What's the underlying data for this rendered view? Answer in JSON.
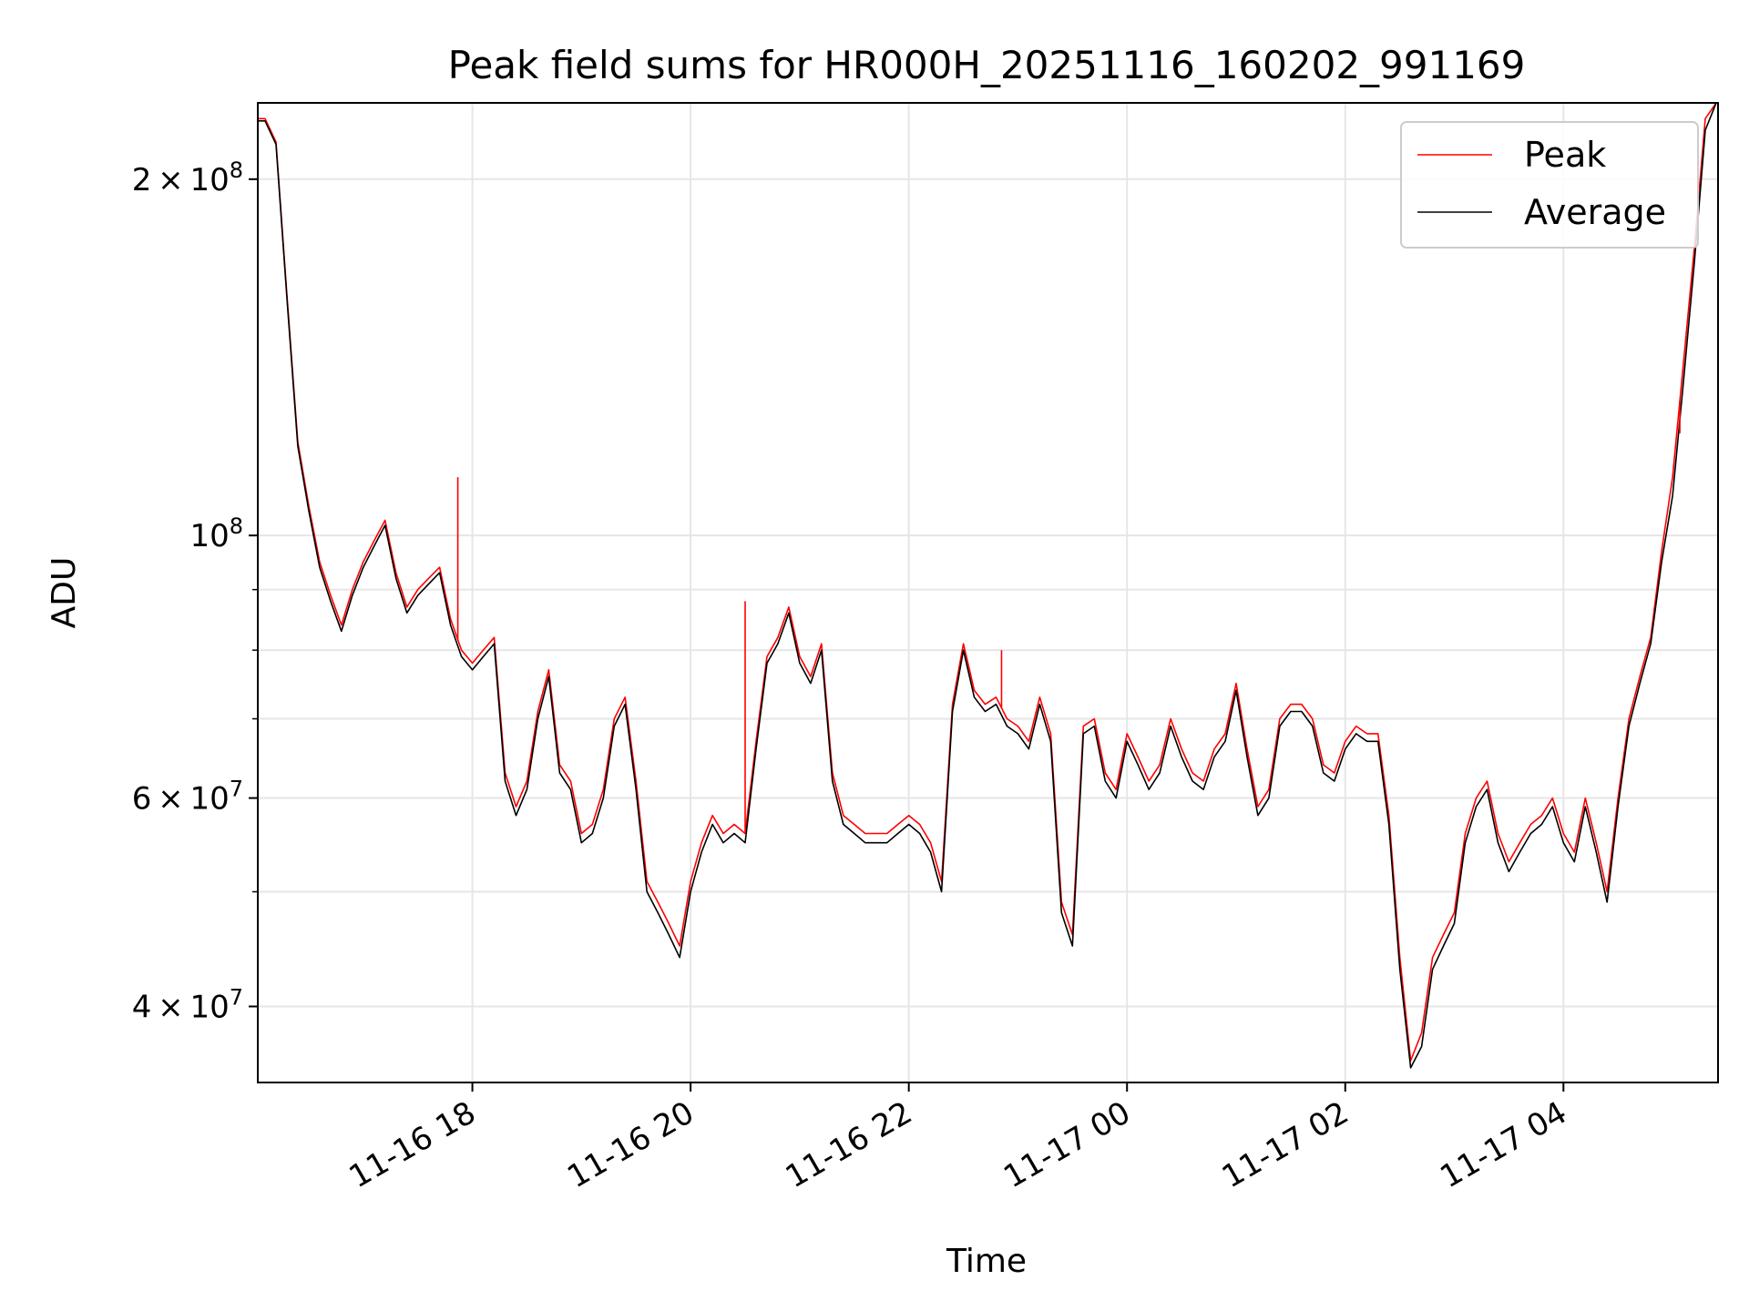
{
  "chart_data": {
    "type": "line",
    "title": "Peak field sums for HR000H_20251116_160202_991169",
    "xlabel": "Time",
    "ylabel": "ADU",
    "yscale": "log",
    "grid": true,
    "legend_position": "top-right",
    "xlim": [
      "2025-11-16 16:02",
      "2025-11-17 05:25"
    ],
    "ylim": [
      34500000,
      232000000
    ],
    "x_ticks": [
      {
        "t": "2025-11-16 18:00",
        "label": "11-16 18"
      },
      {
        "t": "2025-11-16 20:00",
        "label": "11-16 20"
      },
      {
        "t": "2025-11-16 22:00",
        "label": "11-16 22"
      },
      {
        "t": "2025-11-17 00:00",
        "label": "11-17 00"
      },
      {
        "t": "2025-11-17 02:00",
        "label": "11-17 02"
      },
      {
        "t": "2025-11-17 04:00",
        "label": "11-17 04"
      }
    ],
    "y_ticks": [
      {
        "value": 40000000,
        "base": "4",
        "exp": "7"
      },
      {
        "value": 60000000,
        "base": "6",
        "exp": "7"
      },
      {
        "value": 100000000,
        "base": "",
        "exp": "8"
      },
      {
        "value": 200000000,
        "base": "2",
        "exp": "8"
      }
    ],
    "y_minor_ticks": [
      50000000,
      70000000,
      80000000,
      90000000
    ],
    "series": [
      {
        "name": "Peak",
        "color": "#ff0000",
        "x": [
          "2025-11-16 16:02",
          "2025-11-16 16:06",
          "2025-11-16 16:12",
          "2025-11-16 16:18",
          "2025-11-16 16:24",
          "2025-11-16 16:30",
          "2025-11-16 16:36",
          "2025-11-16 16:42",
          "2025-11-16 16:48",
          "2025-11-16 16:54",
          "2025-11-16 17:00",
          "2025-11-16 17:06",
          "2025-11-16 17:12",
          "2025-11-16 17:18",
          "2025-11-16 17:24",
          "2025-11-16 17:30",
          "2025-11-16 17:36",
          "2025-11-16 17:42",
          "2025-11-16 17:48",
          "2025-11-16 17:54",
          "2025-11-16 18:00",
          "2025-11-16 18:06",
          "2025-11-16 18:12",
          "2025-11-16 18:18",
          "2025-11-16 18:24",
          "2025-11-16 18:30",
          "2025-11-16 18:36",
          "2025-11-16 18:42",
          "2025-11-16 18:48",
          "2025-11-16 18:54",
          "2025-11-16 19:00",
          "2025-11-16 19:06",
          "2025-11-16 19:12",
          "2025-11-16 19:18",
          "2025-11-16 19:24",
          "2025-11-16 19:30",
          "2025-11-16 19:36",
          "2025-11-16 19:42",
          "2025-11-16 19:48",
          "2025-11-16 19:54",
          "2025-11-16 20:00",
          "2025-11-16 20:06",
          "2025-11-16 20:12",
          "2025-11-16 20:18",
          "2025-11-16 20:24",
          "2025-11-16 20:30",
          "2025-11-16 20:36",
          "2025-11-16 20:42",
          "2025-11-16 20:48",
          "2025-11-16 20:54",
          "2025-11-16 21:00",
          "2025-11-16 21:06",
          "2025-11-16 21:12",
          "2025-11-16 21:18",
          "2025-11-16 21:24",
          "2025-11-16 21:30",
          "2025-11-16 21:36",
          "2025-11-16 21:42",
          "2025-11-16 21:48",
          "2025-11-16 21:54",
          "2025-11-16 22:00",
          "2025-11-16 22:06",
          "2025-11-16 22:12",
          "2025-11-16 22:18",
          "2025-11-16 22:24",
          "2025-11-16 22:30",
          "2025-11-16 22:36",
          "2025-11-16 22:42",
          "2025-11-16 22:48",
          "2025-11-16 22:54",
          "2025-11-16 23:00",
          "2025-11-16 23:06",
          "2025-11-16 23:12",
          "2025-11-16 23:18",
          "2025-11-16 23:24",
          "2025-11-16 23:30",
          "2025-11-16 23:36",
          "2025-11-16 23:42",
          "2025-11-16 23:48",
          "2025-11-16 23:54",
          "2025-11-17 00:00",
          "2025-11-17 00:06",
          "2025-11-17 00:12",
          "2025-11-17 00:18",
          "2025-11-17 00:24",
          "2025-11-17 00:30",
          "2025-11-17 00:36",
          "2025-11-17 00:42",
          "2025-11-17 00:48",
          "2025-11-17 00:54",
          "2025-11-17 01:00",
          "2025-11-17 01:06",
          "2025-11-17 01:12",
          "2025-11-17 01:18",
          "2025-11-17 01:24",
          "2025-11-17 01:30",
          "2025-11-17 01:36",
          "2025-11-17 01:42",
          "2025-11-17 01:48",
          "2025-11-17 01:54",
          "2025-11-17 02:00",
          "2025-11-17 02:06",
          "2025-11-17 02:12",
          "2025-11-17 02:18",
          "2025-11-17 02:24",
          "2025-11-17 02:30",
          "2025-11-17 02:36",
          "2025-11-17 02:42",
          "2025-11-17 02:48",
          "2025-11-17 02:54",
          "2025-11-17 03:00",
          "2025-11-17 03:06",
          "2025-11-17 03:12",
          "2025-11-17 03:18",
          "2025-11-17 03:24",
          "2025-11-17 03:30",
          "2025-11-17 03:36",
          "2025-11-17 03:42",
          "2025-11-17 03:48",
          "2025-11-17 03:54",
          "2025-11-17 04:00",
          "2025-11-17 04:06",
          "2025-11-17 04:12",
          "2025-11-17 04:18",
          "2025-11-17 04:24",
          "2025-11-17 04:30",
          "2025-11-17 04:36",
          "2025-11-17 04:42",
          "2025-11-17 04:48",
          "2025-11-17 04:54",
          "2025-11-17 05:00",
          "2025-11-17 05:06",
          "2025-11-17 05:12",
          "2025-11-17 05:18",
          "2025-11-17 05:24"
        ],
        "y": [
          225000000,
          225000000,
          215000000,
          160000000,
          120000000,
          106000000,
          95000000,
          89000000,
          84000000,
          90000000,
          95000000,
          99000000,
          103000000,
          93000000,
          87000000,
          90000000,
          92000000,
          94000000,
          85000000,
          80000000,
          78000000,
          80000000,
          82000000,
          63000000,
          59000000,
          62000000,
          71000000,
          77000000,
          64000000,
          62000000,
          56000000,
          57000000,
          61000000,
          70000000,
          73000000,
          62000000,
          51000000,
          49000000,
          47000000,
          45000000,
          51000000,
          55000000,
          58000000,
          56000000,
          57000000,
          56000000,
          67000000,
          79000000,
          82000000,
          87000000,
          79000000,
          76000000,
          81000000,
          63000000,
          58000000,
          57000000,
          56000000,
          56000000,
          56000000,
          57000000,
          58000000,
          57000000,
          55000000,
          51000000,
          72000000,
          81000000,
          74000000,
          72000000,
          73000000,
          70000000,
          69000000,
          67000000,
          73000000,
          68000000,
          49000000,
          46000000,
          69000000,
          70000000,
          63000000,
          61000000,
          68000000,
          65000000,
          62000000,
          64000000,
          70000000,
          66000000,
          63000000,
          62000000,
          66000000,
          68000000,
          75000000,
          66000000,
          59000000,
          61000000,
          70000000,
          72000000,
          72000000,
          70000000,
          64000000,
          63000000,
          67000000,
          69000000,
          68000000,
          68000000,
          58000000,
          44000000,
          36000000,
          38000000,
          44000000,
          46000000,
          48000000,
          56000000,
          60000000,
          62000000,
          56000000,
          53000000,
          55000000,
          57000000,
          58000000,
          60000000,
          56000000,
          54000000,
          60000000,
          55000000,
          50000000,
          60000000,
          70000000,
          76000000,
          82000000,
          97000000,
          112000000,
          140000000,
          175000000,
          225000000,
          232000000
        ]
      },
      {
        "name": "Average",
        "color": "#000000",
        "x": [
          "2025-11-16 16:02",
          "2025-11-16 16:06",
          "2025-11-16 16:12",
          "2025-11-16 16:18",
          "2025-11-16 16:24",
          "2025-11-16 16:30",
          "2025-11-16 16:36",
          "2025-11-16 16:42",
          "2025-11-16 16:48",
          "2025-11-16 16:54",
          "2025-11-16 17:00",
          "2025-11-16 17:06",
          "2025-11-16 17:12",
          "2025-11-16 17:18",
          "2025-11-16 17:24",
          "2025-11-16 17:30",
          "2025-11-16 17:36",
          "2025-11-16 17:42",
          "2025-11-16 17:48",
          "2025-11-16 17:54",
          "2025-11-16 18:00",
          "2025-11-16 18:06",
          "2025-11-16 18:12",
          "2025-11-16 18:18",
          "2025-11-16 18:24",
          "2025-11-16 18:30",
          "2025-11-16 18:36",
          "2025-11-16 18:42",
          "2025-11-16 18:48",
          "2025-11-16 18:54",
          "2025-11-16 19:00",
          "2025-11-16 19:06",
          "2025-11-16 19:12",
          "2025-11-16 19:18",
          "2025-11-16 19:24",
          "2025-11-16 19:30",
          "2025-11-16 19:36",
          "2025-11-16 19:42",
          "2025-11-16 19:48",
          "2025-11-16 19:54",
          "2025-11-16 20:00",
          "2025-11-16 20:06",
          "2025-11-16 20:12",
          "2025-11-16 20:18",
          "2025-11-16 20:24",
          "2025-11-16 20:30",
          "2025-11-16 20:36",
          "2025-11-16 20:42",
          "2025-11-16 20:48",
          "2025-11-16 20:54",
          "2025-11-16 21:00",
          "2025-11-16 21:06",
          "2025-11-16 21:12",
          "2025-11-16 21:18",
          "2025-11-16 21:24",
          "2025-11-16 21:30",
          "2025-11-16 21:36",
          "2025-11-16 21:42",
          "2025-11-16 21:48",
          "2025-11-16 21:54",
          "2025-11-16 22:00",
          "2025-11-16 22:06",
          "2025-11-16 22:12",
          "2025-11-16 22:18",
          "2025-11-16 22:24",
          "2025-11-16 22:30",
          "2025-11-16 22:36",
          "2025-11-16 22:42",
          "2025-11-16 22:48",
          "2025-11-16 22:54",
          "2025-11-16 23:00",
          "2025-11-16 23:06",
          "2025-11-16 23:12",
          "2025-11-16 23:18",
          "2025-11-16 23:24",
          "2025-11-16 23:30",
          "2025-11-16 23:36",
          "2025-11-16 23:42",
          "2025-11-16 23:48",
          "2025-11-16 23:54",
          "2025-11-17 00:00",
          "2025-11-17 00:06",
          "2025-11-17 00:12",
          "2025-11-17 00:18",
          "2025-11-17 00:24",
          "2025-11-17 00:30",
          "2025-11-17 00:36",
          "2025-11-17 00:42",
          "2025-11-17 00:48",
          "2025-11-17 00:54",
          "2025-11-17 01:00",
          "2025-11-17 01:06",
          "2025-11-17 01:12",
          "2025-11-17 01:18",
          "2025-11-17 01:24",
          "2025-11-17 01:30",
          "2025-11-17 01:36",
          "2025-11-17 01:42",
          "2025-11-17 01:48",
          "2025-11-17 01:54",
          "2025-11-17 02:00",
          "2025-11-17 02:06",
          "2025-11-17 02:12",
          "2025-11-17 02:18",
          "2025-11-17 02:24",
          "2025-11-17 02:30",
          "2025-11-17 02:36",
          "2025-11-17 02:42",
          "2025-11-17 02:48",
          "2025-11-17 02:54",
          "2025-11-17 03:00",
          "2025-11-17 03:06",
          "2025-11-17 03:12",
          "2025-11-17 03:18",
          "2025-11-17 03:24",
          "2025-11-17 03:30",
          "2025-11-17 03:36",
          "2025-11-17 03:42",
          "2025-11-17 03:48",
          "2025-11-17 03:54",
          "2025-11-17 04:00",
          "2025-11-17 04:06",
          "2025-11-17 04:12",
          "2025-11-17 04:18",
          "2025-11-17 04:24",
          "2025-11-17 04:30",
          "2025-11-17 04:36",
          "2025-11-17 04:42",
          "2025-11-17 04:48",
          "2025-11-17 04:54",
          "2025-11-17 05:00",
          "2025-11-17 05:06",
          "2025-11-17 05:12",
          "2025-11-17 05:18",
          "2025-11-17 05:24"
        ],
        "y": [
          224000000,
          224000000,
          214000000,
          159000000,
          119000000,
          105000000,
          94000000,
          88000000,
          83000000,
          89000000,
          94000000,
          98000000,
          102000000,
          92000000,
          86000000,
          89000000,
          91000000,
          93000000,
          84000000,
          79000000,
          77000000,
          79000000,
          81000000,
          62000000,
          58000000,
          61000000,
          70000000,
          76000000,
          63000000,
          61000000,
          55000000,
          56000000,
          60000000,
          69000000,
          72000000,
          61000000,
          50000000,
          48000000,
          46000000,
          44000000,
          50000000,
          54000000,
          57000000,
          55000000,
          56000000,
          55000000,
          66000000,
          78000000,
          81000000,
          86000000,
          78000000,
          75000000,
          80000000,
          62000000,
          57000000,
          56000000,
          55000000,
          55000000,
          55000000,
          56000000,
          57000000,
          56000000,
          54000000,
          50000000,
          71000000,
          80000000,
          73000000,
          71000000,
          72000000,
          69000000,
          68000000,
          66000000,
          72000000,
          67000000,
          48000000,
          45000000,
          68000000,
          69000000,
          62000000,
          60000000,
          67000000,
          64000000,
          61000000,
          63000000,
          69000000,
          65000000,
          62000000,
          61000000,
          65000000,
          67000000,
          74000000,
          65000000,
          58000000,
          60000000,
          69000000,
          71000000,
          71000000,
          69000000,
          63000000,
          62000000,
          66000000,
          68000000,
          67000000,
          67000000,
          57000000,
          43000000,
          35500000,
          37000000,
          43000000,
          45000000,
          47000000,
          55000000,
          59000000,
          61000000,
          55000000,
          52000000,
          54000000,
          56000000,
          57000000,
          59000000,
          55000000,
          53000000,
          59000000,
          54000000,
          49000000,
          59000000,
          69000000,
          75000000,
          81000000,
          95000000,
          108000000,
          135000000,
          170000000,
          220000000,
          232000000
        ]
      }
    ],
    "spikes": [
      {
        "series": "Peak",
        "x": "2025-11-16 17:52",
        "y": 112000000
      },
      {
        "series": "Peak",
        "x": "2025-11-16 20:30",
        "y": 88000000
      },
      {
        "series": "Peak",
        "x": "2025-11-16 22:51",
        "y": 80000000
      },
      {
        "series": "Peak",
        "x": "2025-11-17 05:04",
        "y": 122000000
      }
    ]
  }
}
